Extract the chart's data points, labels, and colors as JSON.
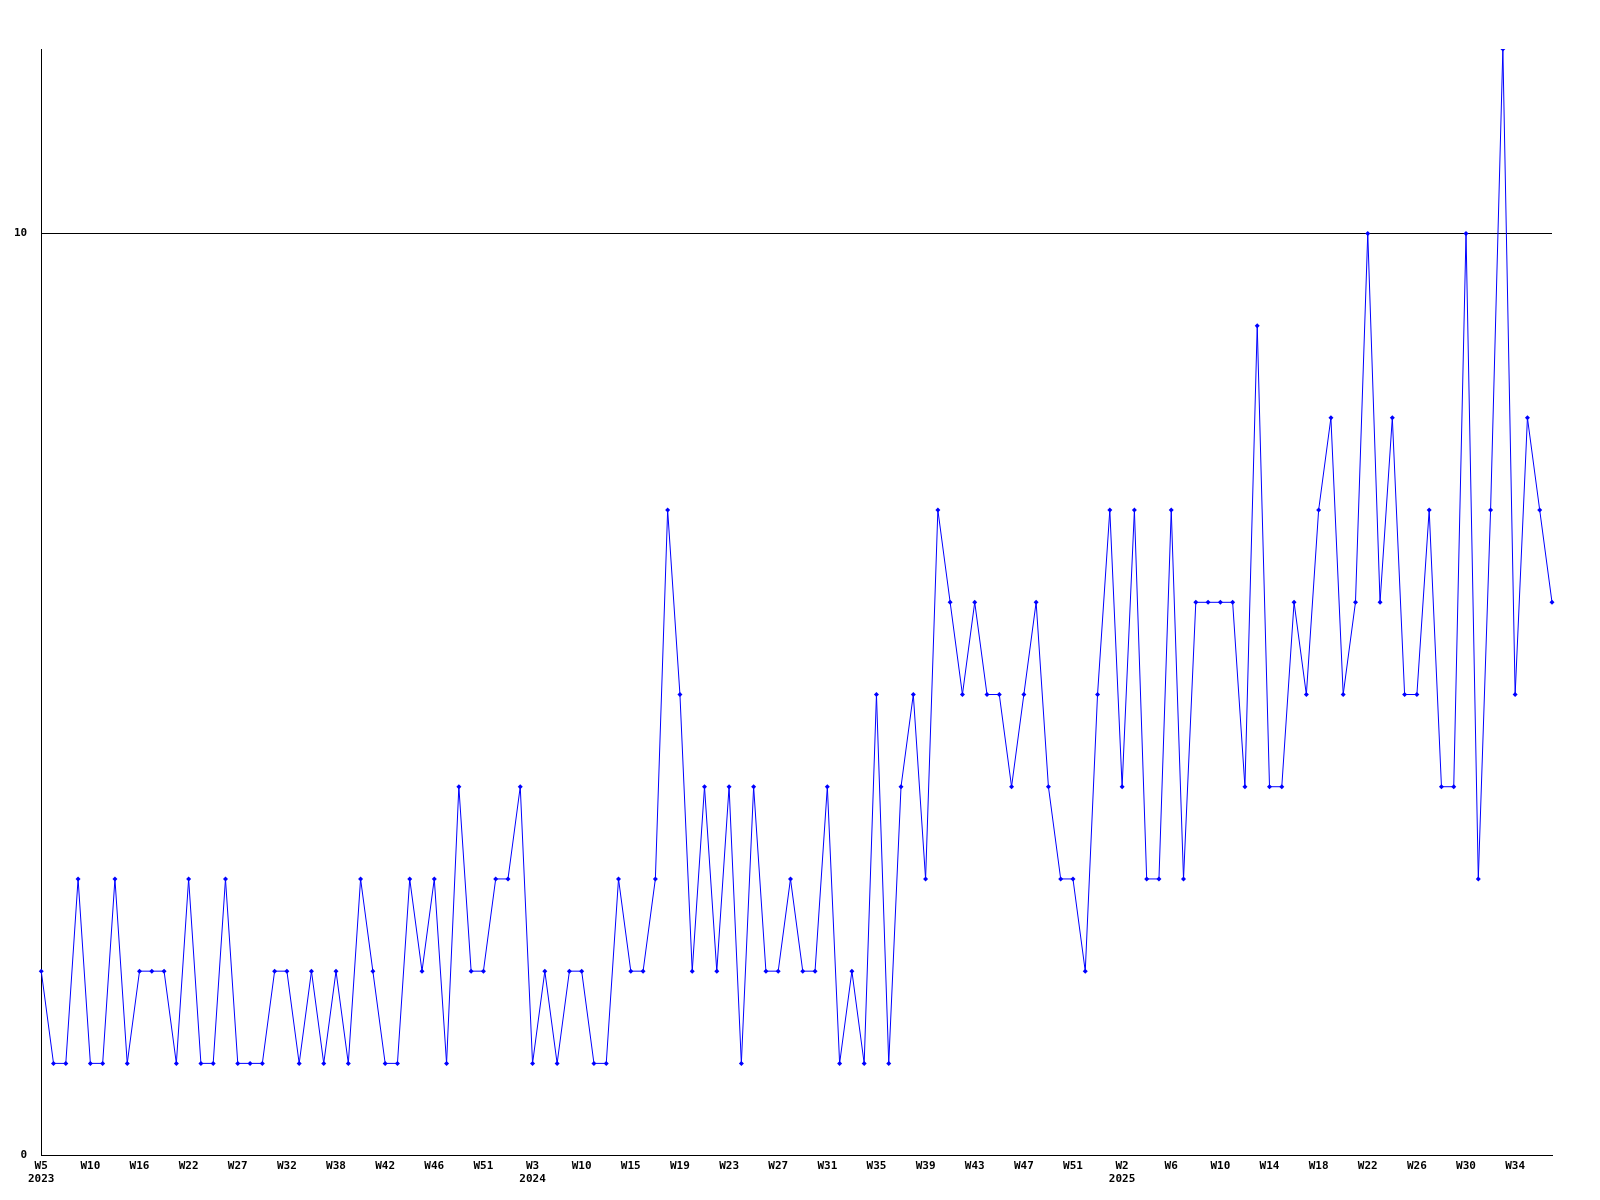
{
  "chart_data": {
    "type": "line",
    "categories": [
      "W5\n2023",
      null,
      null,
      null,
      "W10",
      null,
      null,
      null,
      "W16",
      null,
      null,
      null,
      "W22",
      null,
      null,
      null,
      "W27",
      null,
      null,
      null,
      "W32",
      null,
      null,
      null,
      "W38",
      null,
      null,
      null,
      "W42",
      null,
      null,
      null,
      "W46",
      null,
      null,
      null,
      "W51",
      null,
      null,
      null,
      "W3\n2024",
      null,
      null,
      null,
      "W10",
      null,
      null,
      null,
      "W15",
      null,
      null,
      null,
      "W19",
      null,
      null,
      null,
      "W23",
      null,
      null,
      null,
      "W27",
      null,
      null,
      null,
      "W31",
      null,
      null,
      null,
      "W35",
      null,
      null,
      null,
      "W39",
      null,
      null,
      null,
      "W43",
      null,
      null,
      null,
      "W47",
      null,
      null,
      null,
      "W51",
      null,
      null,
      null,
      "W2\n2025",
      null,
      null,
      null,
      "W6",
      null,
      null,
      null,
      "W10",
      null,
      null,
      null,
      "W14",
      null,
      null,
      null,
      "W18",
      null,
      null,
      null,
      "W22",
      null,
      null,
      null,
      "W26",
      null,
      null,
      null,
      "W30",
      null,
      null,
      null,
      "W34",
      null,
      null,
      null
    ],
    "series": [
      {
        "color": "#0000ff",
        "values": [
          2,
          1,
          1,
          3,
          1,
          1,
          3,
          1,
          2,
          2,
          2,
          1,
          3,
          1,
          1,
          3,
          1,
          1,
          1,
          2,
          2,
          1,
          2,
          1,
          2,
          1,
          3,
          2,
          1,
          1,
          3,
          2,
          3,
          1,
          4,
          2,
          2,
          3,
          3,
          4,
          1,
          2,
          1,
          2,
          2,
          1,
          1,
          3,
          2,
          2,
          3,
          7,
          5,
          2,
          4,
          2,
          4,
          1,
          4,
          2,
          2,
          3,
          2,
          2,
          4,
          1,
          2,
          1,
          5,
          1,
          4,
          5,
          3,
          7,
          6,
          5,
          6,
          5,
          5,
          4,
          5,
          6,
          4,
          3,
          3,
          2,
          5,
          7,
          4,
          7,
          3,
          3,
          7,
          3,
          6,
          6,
          6,
          6,
          4,
          9,
          4,
          4,
          6,
          5,
          7,
          8,
          5,
          6,
          10,
          6,
          8,
          5,
          5,
          7,
          4,
          4,
          10,
          3,
          7,
          12,
          5,
          8,
          7,
          6
        ]
      }
    ],
    "ylim": [
      0,
      12
    ],
    "yticks": [
      0,
      10
    ],
    "grid": "y",
    "legend": false,
    "marker": "diamond",
    "line_style": "solid"
  }
}
